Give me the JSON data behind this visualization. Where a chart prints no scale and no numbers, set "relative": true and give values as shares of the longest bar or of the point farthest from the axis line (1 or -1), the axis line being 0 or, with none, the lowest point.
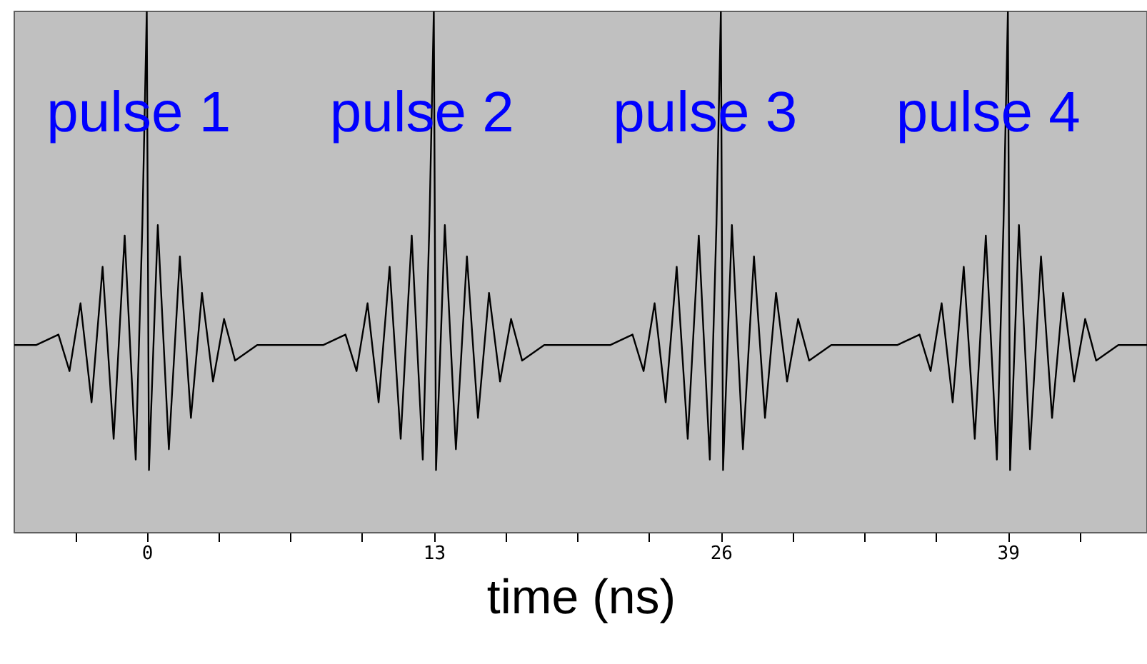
{
  "chart_data": {
    "type": "line",
    "relative": true,
    "xlabel": "time (ns)",
    "xlim": [
      -6.0,
      45.3
    ],
    "xticks": [
      {
        "value": -3.25,
        "label": null
      },
      0,
      {
        "value": 3.25,
        "label": null
      },
      {
        "value": 6.5,
        "label": null
      },
      {
        "value": 9.75,
        "label": null
      },
      13,
      {
        "value": 16.25,
        "label": null
      },
      {
        "value": 19.5,
        "label": null
      },
      {
        "value": 22.75,
        "label": null
      },
      26,
      {
        "value": 29.25,
        "label": null
      },
      {
        "value": 32.5,
        "label": null
      },
      {
        "value": 35.75,
        "label": null
      },
      39,
      {
        "value": 42.25,
        "label": null
      }
    ],
    "x": [
      -6,
      -5,
      -4,
      -3.5,
      -3,
      -2.5,
      -2,
      -1.5,
      -1,
      -0.5,
      -0.2,
      0,
      0.1,
      0.5,
      1,
      1.5,
      2,
      2.5,
      3,
      3.5,
      4,
      5,
      8,
      9,
      9.5,
      10,
      10.5,
      11,
      11.5,
      12,
      12.5,
      12.8,
      13,
      13.1,
      13.5,
      14,
      14.5,
      15,
      15.5,
      16,
      16.5,
      17,
      18,
      21,
      22,
      22.5,
      23,
      23.5,
      24,
      24.5,
      25,
      25.5,
      25.8,
      26,
      26.1,
      26.5,
      27,
      27.5,
      28,
      28.5,
      29,
      29.5,
      30,
      31,
      34,
      35,
      35.5,
      36,
      36.5,
      37,
      37.5,
      38,
      38.5,
      38.8,
      39,
      39.1,
      39.5,
      40,
      40.5,
      41,
      41.5,
      42,
      42.5,
      43,
      44,
      45.3
    ],
    "series": [
      {
        "color": "#000000",
        "values": [
          0.36,
          0.36,
          0.38,
          0.31,
          0.44,
          0.25,
          0.51,
          0.18,
          0.57,
          0.14,
          0.59,
          1,
          0.12,
          0.59,
          0.16,
          0.53,
          0.22,
          0.46,
          0.29,
          0.41,
          0.33,
          0.36,
          0.36,
          0.38,
          0.31,
          0.44,
          0.25,
          0.51,
          0.18,
          0.57,
          0.14,
          0.59,
          1,
          0.12,
          0.59,
          0.16,
          0.53,
          0.22,
          0.46,
          0.29,
          0.41,
          0.33,
          0.36,
          0.36,
          0.38,
          0.31,
          0.44,
          0.25,
          0.51,
          0.18,
          0.57,
          0.14,
          0.59,
          1,
          0.12,
          0.59,
          0.16,
          0.53,
          0.22,
          0.46,
          0.29,
          0.41,
          0.33,
          0.36,
          0.36,
          0.38,
          0.31,
          0.44,
          0.25,
          0.51,
          0.18,
          0.57,
          0.14,
          0.59,
          1,
          0.12,
          0.59,
          0.16,
          0.53,
          0.22,
          0.46,
          0.29,
          0.41,
          0.33,
          0.36,
          0.36
        ]
      }
    ],
    "annotations": [
      "pulse 1",
      "pulse 2",
      "pulse 3",
      "pulse 4"
    ]
  }
}
